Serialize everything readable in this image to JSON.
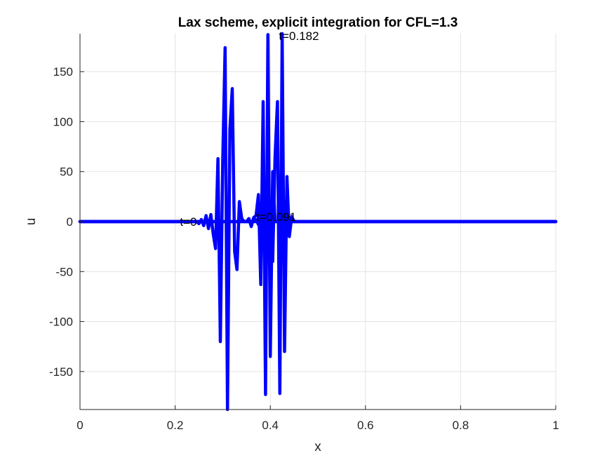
{
  "chart_data": {
    "type": "line",
    "title": "Lax scheme, explicit integration for CFL=1.3",
    "xlabel": "x",
    "ylabel": "u",
    "xlim": [
      0,
      1
    ],
    "ylim": [
      -188,
      188
    ],
    "grid": true,
    "line_color": "#0000ff",
    "x_ticks": [
      0,
      0.2,
      0.4,
      0.6,
      0.8,
      1
    ],
    "x_tick_labels": [
      "0",
      "0.2",
      "0.4",
      "0.6",
      "0.8",
      "1"
    ],
    "y_ticks": [
      -150,
      -100,
      -50,
      0,
      50,
      100,
      150
    ],
    "y_tick_labels": [
      "-150",
      "-100",
      "-50",
      "0",
      "50",
      "100",
      "150"
    ],
    "annotations": [
      {
        "text": "t=0",
        "x": 0.21,
        "y": 0
      },
      {
        "text": "t=0.091",
        "x": 0.37,
        "y": 5
      },
      {
        "text": "t=0.182",
        "x": 0.418,
        "y": 186
      }
    ],
    "series": [
      {
        "x": [
          0,
          0.245,
          0.25,
          0.255,
          0.26,
          0.265,
          0.27,
          0.275,
          0.28,
          0.285,
          0.29,
          0.295,
          0.3,
          0.305,
          0.31,
          0.315,
          0.32,
          0.325,
          0.33,
          0.335,
          0.34,
          0.345,
          0.35,
          0.355,
          1
        ],
        "y": [
          0,
          0,
          -2,
          2,
          -4,
          6,
          -7,
          7,
          -12,
          -27,
          63,
          -120,
          60,
          174,
          -188,
          92,
          133,
          -30,
          -48,
          20,
          3,
          0,
          0,
          0,
          0
        ]
      },
      {
        "x": [
          0,
          0.35,
          0.355,
          0.36,
          0.365,
          0.37,
          0.375,
          0.38,
          0.385,
          0.39,
          0.395,
          0.4,
          0.405,
          0.41,
          0.415,
          0.42,
          0.425,
          0.43,
          0.435,
          0.44,
          0.445,
          0.45,
          1
        ],
        "y": [
          0,
          0,
          3,
          -5,
          4,
          6,
          27,
          -63,
          120,
          -173,
          187,
          -135,
          50,
          0,
          0,
          0,
          0,
          0,
          0,
          0,
          0,
          0,
          0
        ]
      },
      {
        "x": [
          0,
          0.36,
          0.365,
          0.37,
          0.375,
          0.38,
          0.385,
          0.39,
          0.395,
          0.4,
          0.405,
          0.41,
          0.415,
          0.42,
          0.425,
          0.43,
          0.435,
          0.44,
          0.445,
          0.45,
          1
        ],
        "y": [
          0,
          0,
          0,
          2,
          -3,
          4,
          -6,
          8,
          -10,
          20,
          -40,
          65,
          120,
          -172,
          188,
          -130,
          45,
          -15,
          5,
          0,
          0
        ]
      }
    ]
  }
}
